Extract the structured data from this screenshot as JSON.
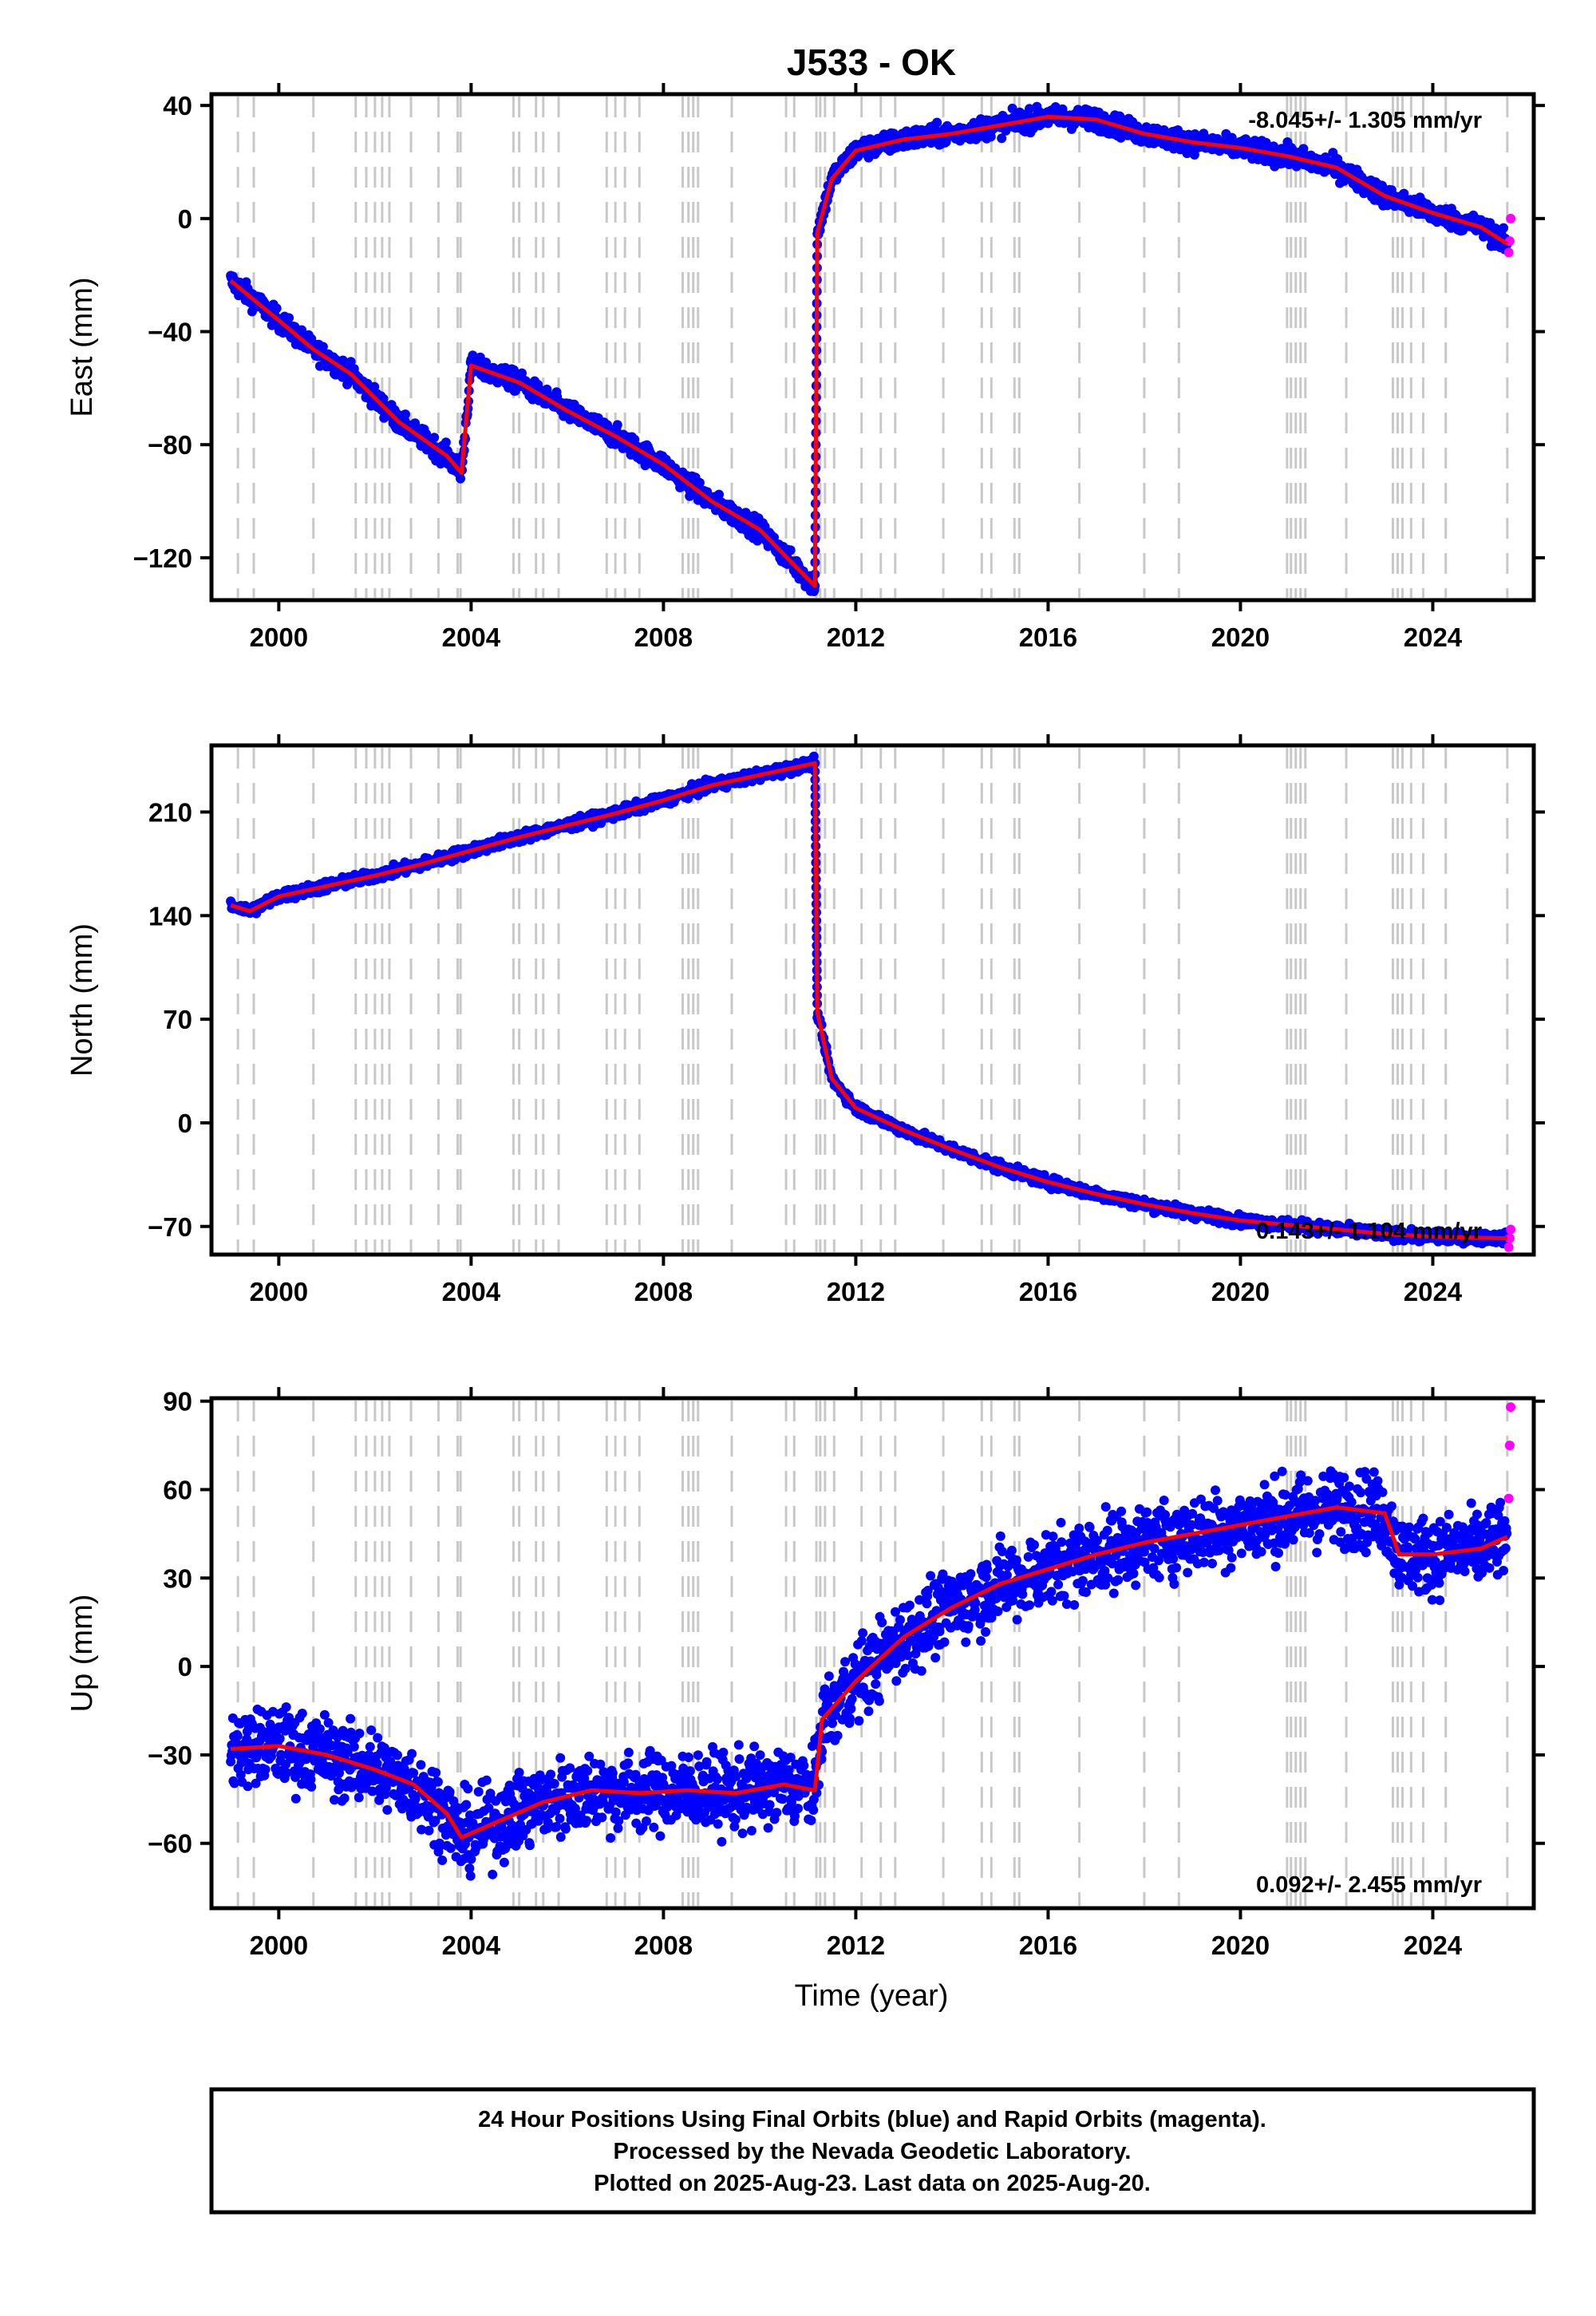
{
  "title": "J533 - OK",
  "colors": {
    "final": "#0000ff",
    "rapid": "#ff00ff",
    "model": "#ff0000",
    "event_lines": "#c8c8c8",
    "frame": "#000000"
  },
  "xaxis": {
    "label": "Time (year)",
    "ticks": [
      2000,
      2004,
      2008,
      2012,
      2016,
      2020,
      2024
    ],
    "range": [
      1998.6,
      2026.1
    ]
  },
  "event_lines": [
    1999.15,
    1999.48,
    2000.72,
    2001.6,
    2001.82,
    2002.0,
    2002.15,
    2002.3,
    2002.75,
    2003.32,
    2003.72,
    2003.78,
    2004.88,
    2005.0,
    2005.35,
    2005.5,
    2005.82,
    2006.82,
    2007.0,
    2007.2,
    2007.5,
    2008.4,
    2008.52,
    2008.62,
    2008.72,
    2009.42,
    2010.55,
    2010.72,
    2011.18,
    2011.26,
    2011.36,
    2011.55,
    2012.12,
    2012.52,
    2012.82,
    2013.82,
    2014.62,
    2014.82,
    2015.3,
    2015.4,
    2016.65,
    2018.0,
    2018.72,
    2020.97,
    2021.05,
    2021.15,
    2021.25,
    2021.35,
    2022.2,
    2023.17,
    2023.27,
    2023.37,
    2023.55,
    2023.8,
    2024.27,
    2025.55
  ],
  "panels": [
    {
      "name": "east",
      "ylabel": "East (mm)",
      "yrange": [
        -135,
        44
      ],
      "yticks": [
        "40",
        "0",
        "−40",
        "−80",
        "−120"
      ],
      "ytick_values": [
        40,
        0,
        -40,
        -80,
        -120
      ],
      "rate_text": "-8.045+/- 1.305 mm/yr",
      "rate_pos": "top-right"
    },
    {
      "name": "north",
      "ylabel": "North (mm)",
      "yrange": [
        -89,
        255
      ],
      "yticks": [
        "210",
        "140",
        "70",
        "0",
        "−70"
      ],
      "ytick_values": [
        210,
        140,
        70,
        0,
        -70
      ],
      "rate_text": "0.143+/- 1.104 mm/yr",
      "rate_pos": "bottom-right"
    },
    {
      "name": "up",
      "ylabel": "Up (mm)",
      "yrange": [
        -82,
        91
      ],
      "yticks": [
        "90",
        "60",
        "30",
        "0",
        "−30",
        "−60"
      ],
      "ytick_values": [
        90,
        60,
        30,
        0,
        -30,
        -60
      ],
      "rate_text": "0.092+/- 2.455 mm/yr",
      "rate_pos": "bottom-right"
    }
  ],
  "chart_data": [
    {
      "type": "scatter",
      "title": "J533 - OK",
      "xlabel": "Time (year)",
      "ylabel": "East (mm)",
      "ylim": [
        -135,
        44
      ],
      "grid": false,
      "series": [
        {
          "name": "Final Orbits (blue)",
          "x": [
            1999.0,
            1999.5,
            2000.0,
            2000.7,
            2001.5,
            2002.5,
            2003.5,
            2003.8,
            2004.0,
            2005.0,
            2006.0,
            2007.0,
            2008.0,
            2009.0,
            2010.0,
            2010.8,
            2011.15,
            2011.2,
            2011.5,
            2012.0,
            2013.0,
            2014.0,
            2015.0,
            2016.0,
            2017.0,
            2018.0,
            2019.0,
            2020.0,
            2021.0,
            2022.0,
            2023.0,
            2024.0,
            2025.0,
            2025.55
          ],
          "y": [
            -22,
            -29,
            -36,
            -46,
            -55,
            -72,
            -84,
            -90,
            -52,
            -58,
            -68,
            -77,
            -87,
            -100,
            -110,
            -124,
            -130,
            -5,
            14,
            24,
            28,
            30,
            33,
            36,
            35,
            30,
            27,
            25,
            22,
            18,
            8,
            2,
            -3,
            -9
          ]
        },
        {
          "name": "Rapid Orbits (magenta)",
          "x": [
            2025.58,
            2025.6,
            2025.62
          ],
          "y": [
            -12,
            -8,
            0
          ]
        }
      ]
    },
    {
      "type": "scatter",
      "xlabel": "Time (year)",
      "ylabel": "North (mm)",
      "ylim": [
        -89,
        255
      ],
      "grid": false,
      "series": [
        {
          "name": "Final Orbits (blue)",
          "x": [
            1999.0,
            1999.4,
            2000.0,
            2001.0,
            2002.0,
            2003.0,
            2004.0,
            2005.0,
            2006.0,
            2007.0,
            2008.0,
            2009.0,
            2010.0,
            2011.15,
            2011.2,
            2011.5,
            2012.0,
            2013.0,
            2014.0,
            2015.0,
            2016.0,
            2017.0,
            2018.0,
            2019.0,
            2020.0,
            2021.0,
            2022.0,
            2023.0,
            2024.0,
            2025.55
          ],
          "y": [
            147,
            143,
            153,
            160,
            167,
            175,
            184,
            193,
            201,
            209,
            218,
            228,
            235,
            243,
            75,
            30,
            10,
            -5,
            -18,
            -30,
            -40,
            -48,
            -55,
            -61,
            -66,
            -69,
            -72,
            -75,
            -77,
            -78
          ]
        },
        {
          "name": "Rapid Orbits (magenta)",
          "x": [
            2025.58,
            2025.6,
            2025.62
          ],
          "y": [
            -84,
            -78,
            -72
          ]
        }
      ]
    },
    {
      "type": "scatter",
      "xlabel": "Time (year)",
      "ylabel": "Up (mm)",
      "ylim": [
        -82,
        91
      ],
      "grid": false,
      "series": [
        {
          "name": "Final Orbits (blue)",
          "x": [
            1999.0,
            2000.0,
            2001.0,
            2002.0,
            2002.8,
            2003.5,
            2003.8,
            2004.5,
            2005.5,
            2006.5,
            2007.5,
            2008.5,
            2009.5,
            2010.5,
            2011.15,
            2011.3,
            2012.0,
            2013.0,
            2014.0,
            2015.0,
            2016.0,
            2017.0,
            2018.0,
            2019.0,
            2020.0,
            2021.0,
            2022.0,
            2023.0,
            2023.3,
            2024.0,
            2025.0,
            2025.55
          ],
          "y": [
            -28,
            -27,
            -30,
            -35,
            -40,
            -50,
            -58,
            -53,
            -46,
            -42,
            -43,
            -42,
            -43,
            -40,
            -42,
            -18,
            -5,
            10,
            20,
            28,
            33,
            38,
            42,
            45,
            48,
            51,
            54,
            52,
            38,
            38,
            40,
            44
          ]
        },
        {
          "name": "Rapid Orbits (magenta)",
          "x": [
            2025.58,
            2025.6,
            2025.62
          ],
          "y": [
            57,
            75,
            88
          ]
        }
      ]
    }
  ],
  "footer": {
    "line1": "24 Hour Positions Using Final Orbits (blue) and Rapid Orbits (magenta).",
    "line2": "Processed by the Nevada Geodetic Laboratory.",
    "line3": "Plotted on 2025-Aug-23. Last data on 2025-Aug-20."
  }
}
